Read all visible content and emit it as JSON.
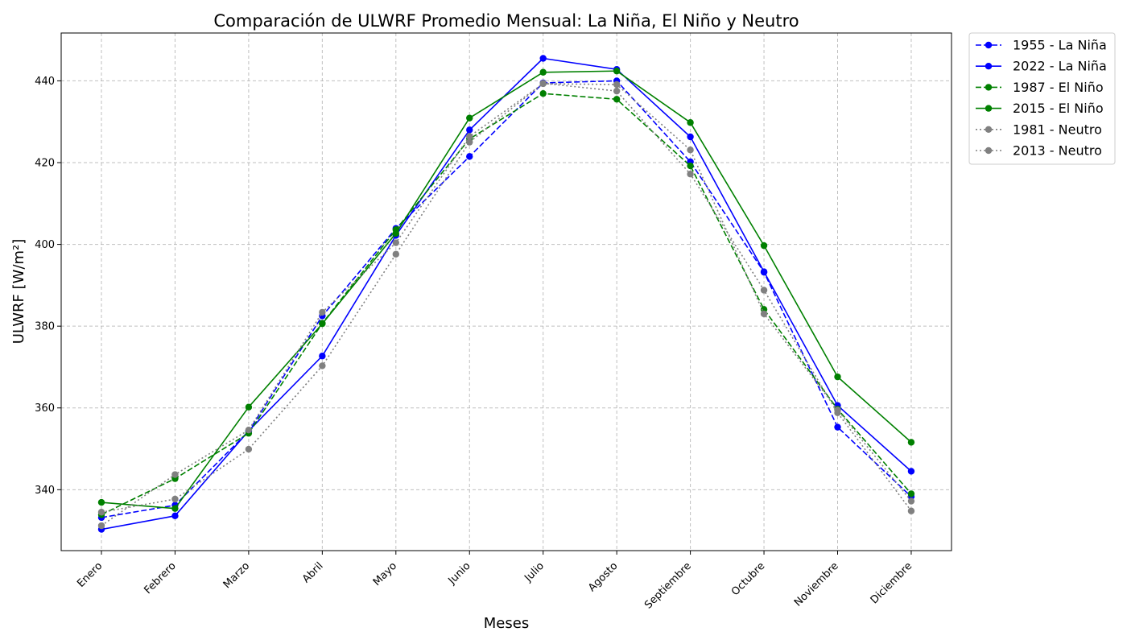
{
  "chart_data": {
    "type": "line",
    "title": "Comparación de ULWRF Promedio Mensual: La Niña, El Niño y Neutro",
    "xlabel": "Meses",
    "ylabel": "ULWRF [W/m²]",
    "categories": [
      "Enero",
      "Febrero",
      "Marzo",
      "Abril",
      "Mayo",
      "Junio",
      "Julio",
      "Agosto",
      "Septiembre",
      "Octubre",
      "Noviembre",
      "Diciembre"
    ],
    "ylim": [
      325.1,
      451.7
    ],
    "yticks": [
      340,
      360,
      380,
      400,
      420,
      440
    ],
    "grid": true,
    "legend_position": "outside top-right",
    "series": [
      {
        "name": "1955 - La Niña",
        "color": "#0000ff",
        "linestyle": "dashed",
        "marker": "circle",
        "values": [
          333.2,
          336.2,
          354.3,
          382.5,
          403.9,
          421.5,
          439.5,
          440.0,
          420.2,
          393.2,
          355.3,
          338.3
        ]
      },
      {
        "name": "2022 - La Niña",
        "color": "#0000ff",
        "linestyle": "solid",
        "marker": "circle",
        "values": [
          330.3,
          333.6,
          354.4,
          372.7,
          402.2,
          428.0,
          445.5,
          442.8,
          426.3,
          393.3,
          360.6,
          344.5
        ]
      },
      {
        "name": "1987 - El Niño",
        "color": "#008000",
        "linestyle": "dashed",
        "marker": "circle",
        "values": [
          333.9,
          342.7,
          353.8,
          380.7,
          403.6,
          425.8,
          436.9,
          435.5,
          419.2,
          384.1,
          359.7,
          339.0
        ]
      },
      {
        "name": "2015 - El Niño",
        "color": "#008000",
        "linestyle": "solid",
        "marker": "circle",
        "values": [
          336.9,
          335.4,
          360.2,
          380.6,
          402.7,
          430.9,
          442.1,
          442.4,
          429.8,
          399.7,
          367.6,
          351.6
        ]
      },
      {
        "name": "1981 - Neutro",
        "color": "#808080",
        "linestyle": "dotted",
        "marker": "circle",
        "values": [
          334.5,
          337.7,
          349.9,
          370.3,
          397.6,
          425.0,
          439.4,
          437.5,
          417.2,
          388.8,
          358.8,
          334.8
        ]
      },
      {
        "name": "2013 - Neutro",
        "color": "#808080",
        "linestyle": "dotted",
        "marker": "circle",
        "values": [
          331.2,
          343.7,
          354.6,
          383.4,
          400.4,
          426.4,
          439.3,
          439.1,
          423.1,
          383.0,
          359.5,
          337.2
        ]
      }
    ]
  }
}
